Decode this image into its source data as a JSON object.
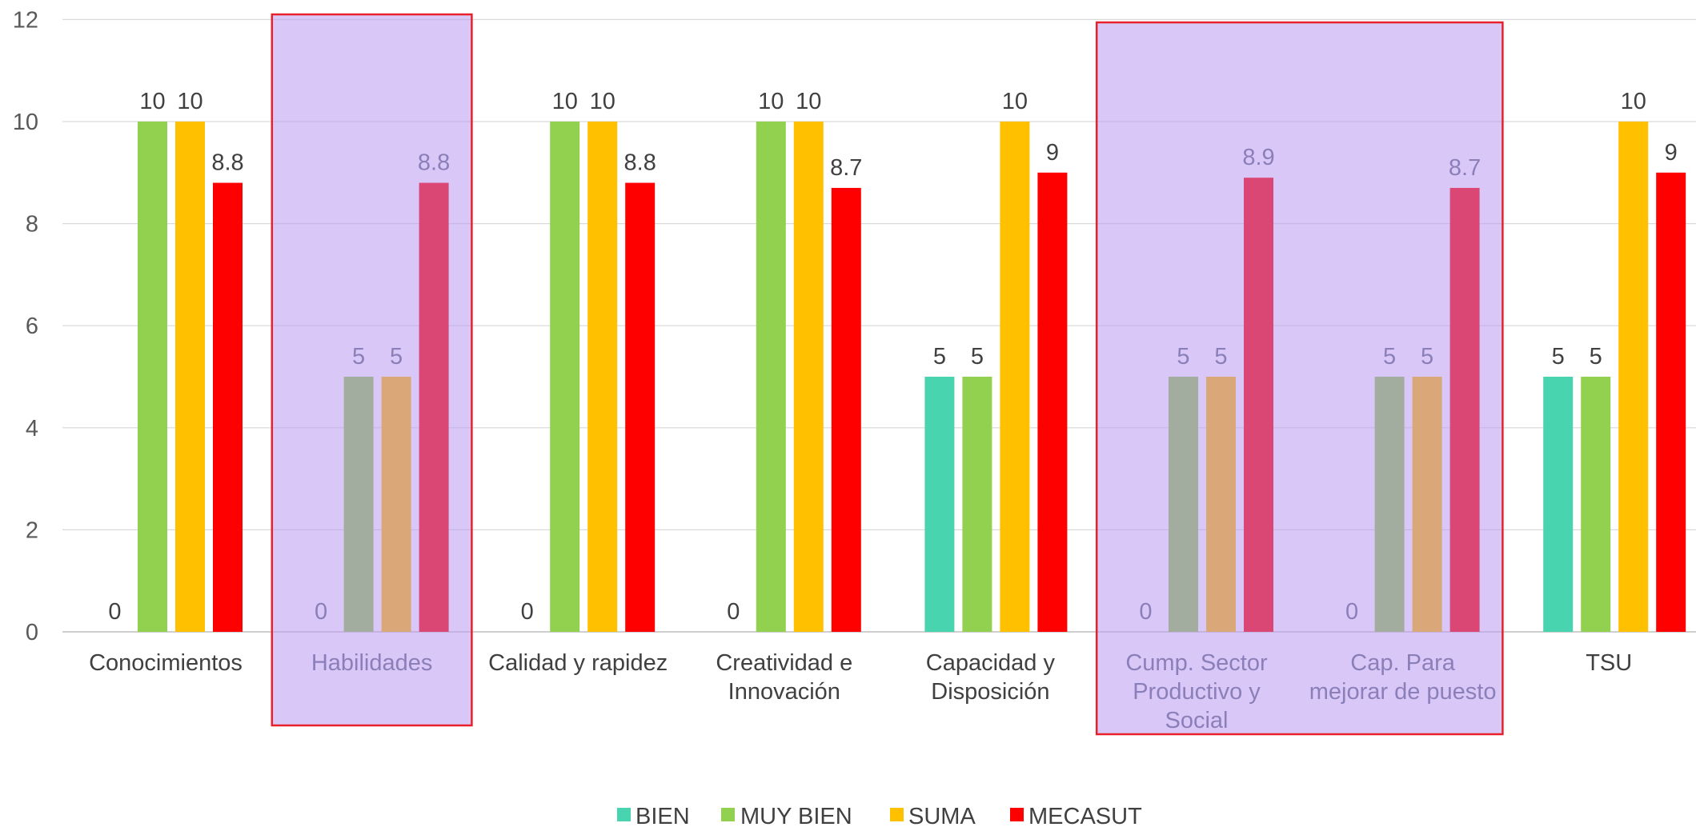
{
  "chart_data": {
    "type": "bar",
    "categories": [
      [
        "Conocimientos"
      ],
      [
        "Habilidades"
      ],
      [
        "Calidad y rapidez"
      ],
      [
        "Creatividad e",
        "Innovación"
      ],
      [
        "Capacidad y",
        "Disposición"
      ],
      [
        "Cump. Sector",
        "Productivo y",
        "Social"
      ],
      [
        "Cap. Para",
        "mejorar de puesto"
      ],
      [
        "TSU"
      ]
    ],
    "series": [
      {
        "name": "BIEN",
        "color": "#48D4AE",
        "values": [
          0,
          0,
          0,
          0,
          5,
          0,
          0,
          5
        ],
        "labels": [
          "0",
          "0",
          "0",
          "0",
          "5",
          "0",
          "0",
          "5"
        ]
      },
      {
        "name": "MUY BIEN",
        "color": "#92D050",
        "values": [
          10,
          5,
          10,
          10,
          5,
          5,
          5,
          5
        ],
        "labels": [
          "10",
          "5",
          "10",
          "10",
          "5",
          "5",
          "5",
          "5"
        ]
      },
      {
        "name": "SUMA",
        "color": "#FFC000",
        "values": [
          10,
          5,
          null,
          10,
          10,
          5,
          5,
          10
        ],
        "labels": [
          "10",
          "5",
          "10",
          "10",
          "10",
          "5",
          "5",
          "10"
        ]
      },
      {
        "name": "MECASUT",
        "color": "#FF0000",
        "values": [
          8.8,
          8.8,
          8.8,
          8.7,
          9,
          8.9,
          8.7,
          9
        ],
        "labels": [
          "8.8",
          "8.8",
          "8.8",
          "8.7",
          "9",
          "8.9",
          "8.7",
          "9"
        ]
      }
    ],
    "suma_calidad_value": 10,
    "ylim": [
      0,
      12
    ],
    "yticks": [
      "0",
      "2",
      "4",
      "6",
      "8",
      "10",
      "12"
    ],
    "grid": true,
    "legend_position": "bottom",
    "highlighted_groups": [
      [
        1
      ],
      [
        5,
        6
      ]
    ],
    "highlight_fill": "#B99AF0",
    "highlight_border": "#E8202A",
    "muted_colors": {
      "MUY BIEN": "#A3AD9F",
      "SUMA": "#DAA778",
      "MECASUT": "#DA4775",
      "text": "#8A7FB8"
    }
  }
}
